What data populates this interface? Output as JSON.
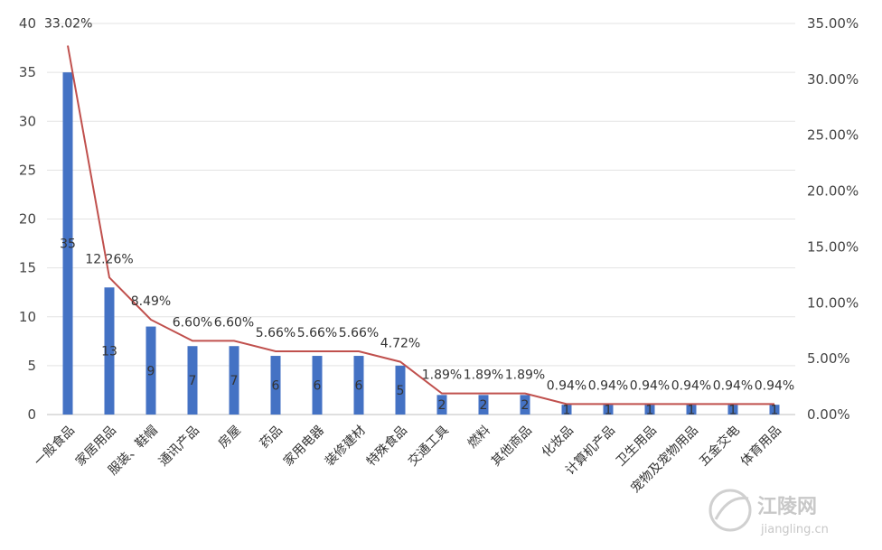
{
  "chart_data": {
    "type": "bar",
    "categories": [
      "一般食品",
      "家居用品",
      "服装、鞋帽",
      "通讯产品",
      "房屋",
      "药品",
      "家用电器",
      "装修建材",
      "特殊食品",
      "交通工具",
      "燃料",
      "其他商品",
      "化妆品",
      "计算机产品",
      "卫生用品",
      "宠物及宠物用品",
      "五金交电",
      "体育用品"
    ],
    "series": [
      {
        "type": "bar",
        "axis": "left",
        "values": [
          35,
          13,
          9,
          7,
          7,
          6,
          6,
          6,
          5,
          2,
          2,
          2,
          1,
          1,
          1,
          1,
          1,
          1
        ],
        "color": "#4472c4"
      },
      {
        "type": "line",
        "axis": "right",
        "values": [
          33.02,
          12.26,
          8.49,
          6.6,
          6.6,
          5.66,
          5.66,
          5.66,
          4.72,
          1.89,
          1.89,
          1.89,
          0.94,
          0.94,
          0.94,
          0.94,
          0.94,
          0.94
        ],
        "color": "#c0504d"
      }
    ],
    "bar_labels": [
      "35",
      "13",
      "9",
      "7",
      "7",
      "6",
      "6",
      "6",
      "5",
      "2",
      "2",
      "2",
      "1",
      "1",
      "1",
      "1",
      "1",
      "1"
    ],
    "line_labels": [
      "33.02%",
      "12.26%",
      "8.49%",
      "6.60%",
      "6.60%",
      "5.66%",
      "5.66%",
      "5.66%",
      "4.72%",
      "1.89%",
      "1.89%",
      "1.89%",
      "0.94%",
      "0.94%",
      "0.94%",
      "0.94%",
      "0.94%",
      "0.94%"
    ],
    "ylim": [
      0,
      40
    ],
    "y_ticks": [
      "0",
      "5",
      "10",
      "15",
      "20",
      "25",
      "30",
      "35",
      "40"
    ],
    "y2lim": [
      0,
      35
    ],
    "y2_ticks": [
      "0.00%",
      "5.00%",
      "10.00%",
      "15.00%",
      "20.00%",
      "25.00%",
      "30.00%",
      "35.00%"
    ],
    "grid": true,
    "title": "",
    "xlabel": "",
    "ylabel": ""
  },
  "watermark": {
    "text": "江陵网",
    "url": "jiangling.cn"
  }
}
